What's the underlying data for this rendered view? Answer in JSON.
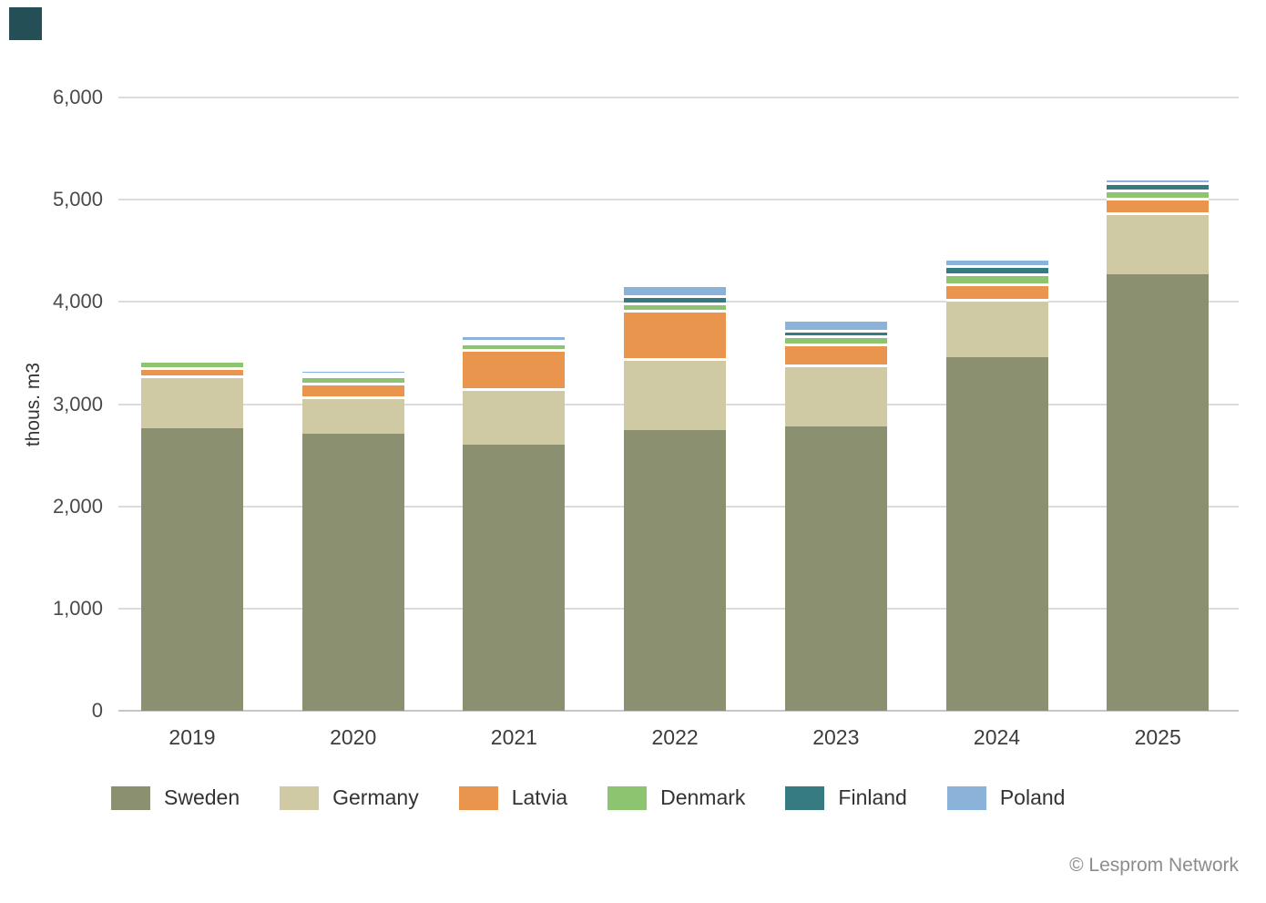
{
  "branding": {
    "logo_color": "#254f57"
  },
  "chart_data": {
    "type": "bar",
    "stacked": true,
    "title": "",
    "xlabel": "",
    "ylabel": "thous. m3",
    "ylim": [
      0,
      6000
    ],
    "grid": true,
    "legend_position": "bottom",
    "x": [
      "2019",
      "2020",
      "2021",
      "2022",
      "2023",
      "2024",
      "2025"
    ],
    "yticks": [
      {
        "value": 0,
        "label": "0"
      },
      {
        "value": 1000,
        "label": "1,000"
      },
      {
        "value": 2000,
        "label": "2,000"
      },
      {
        "value": 3000,
        "label": "3,000"
      },
      {
        "value": 4000,
        "label": "4,000"
      },
      {
        "value": 5000,
        "label": "5,000"
      },
      {
        "value": 6000,
        "label": "6,000"
      }
    ],
    "series": [
      {
        "name": "Sweden",
        "color": "#8a9070",
        "values": [
          2760,
          2710,
          2600,
          2750,
          2780,
          3460,
          4270
        ]
      },
      {
        "name": "Germany",
        "color": "#cfcaa3",
        "values": [
          520,
          370,
          560,
          700,
          610,
          570,
          610
        ]
      },
      {
        "name": "Latvia",
        "color": "#e9954e",
        "values": [
          80,
          130,
          380,
          470,
          200,
          150,
          140
        ]
      },
      {
        "name": "Denmark",
        "color": "#8dc46f",
        "values": [
          70,
          70,
          60,
          75,
          80,
          100,
          80
        ]
      },
      {
        "name": "Finland",
        "color": "#367b82",
        "values": [
          20,
          25,
          30,
          70,
          60,
          80,
          70
        ]
      },
      {
        "name": "Poland",
        "color": "#8bb3da",
        "values": [
          30,
          35,
          50,
          105,
          100,
          70,
          45
        ]
      }
    ],
    "totals": [
      3480,
      3340,
      3680,
      4170,
      3830,
      4430,
      5215
    ]
  },
  "footer": {
    "copyright": "© Lesprom Network"
  }
}
